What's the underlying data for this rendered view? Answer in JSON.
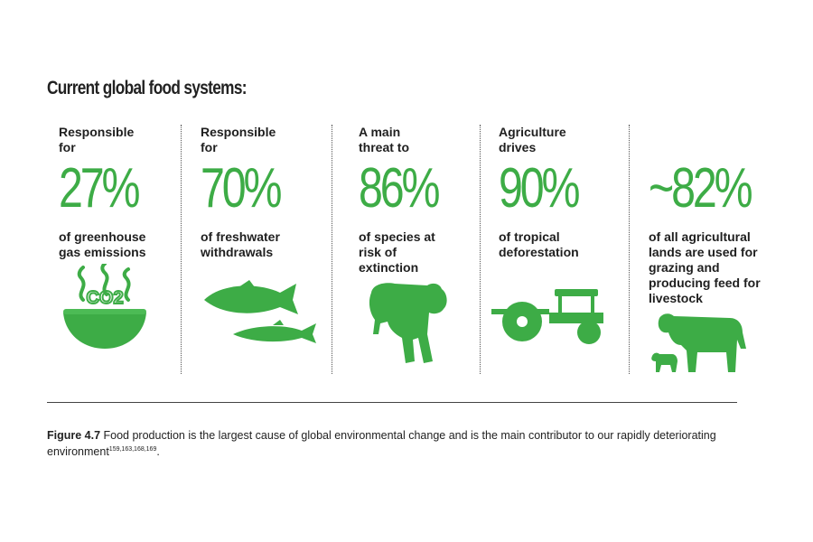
{
  "heading": "Current global food systems:",
  "stats": [
    {
      "intro": "Responsible for",
      "value": "27%",
      "desc": "of greenhouse gas emissions",
      "icon": "bowl-icon"
    },
    {
      "intro": "Responsible for",
      "value": "70%",
      "desc": "of freshwater withdrawals",
      "icon": "fish-icon"
    },
    {
      "intro": "A main threat to",
      "value": "86%",
      "desc": "of species at risk of extinction",
      "icon": "tiger-icon"
    },
    {
      "intro": "Agriculture drives",
      "value": "90%",
      "desc": "of tropical deforestation",
      "icon": "tractor-icon"
    },
    {
      "intro": "",
      "value": "~82%",
      "desc": "of all agricultural lands are used for grazing and producing feed for livestock",
      "icon": "cow-icon"
    }
  ],
  "bowl_label": "CO2",
  "caption": {
    "label": "Figure 4.7",
    "text": " Food production is the largest cause of global environmental change and is the main contributor to our rapidly deteriorating environment",
    "refs": "159,163,168,169",
    "end": "."
  },
  "colors": {
    "accent": "#3dac46",
    "text": "#1f1f1f"
  }
}
